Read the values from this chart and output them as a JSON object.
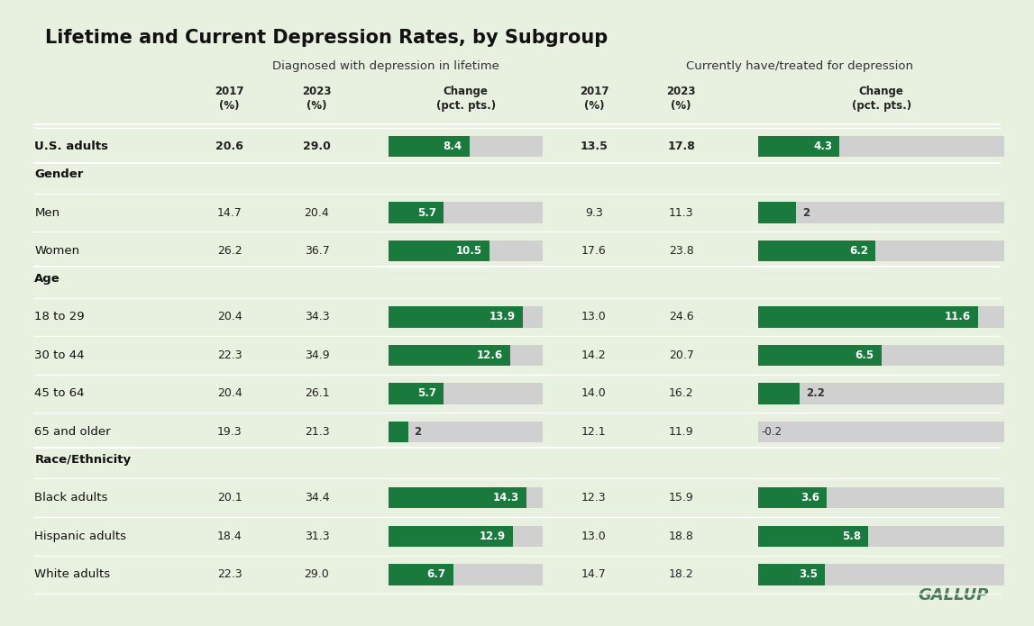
{
  "title": "Lifetime and Current Depression Rates, by Subgroup",
  "background_color": "#e8f0e0",
  "green_color": "#1a7a3e",
  "light_gray": "#d0d0d0",
  "rows": [
    {
      "label": "U.S. adults",
      "type": "data_bold",
      "life_2017": 20.6,
      "life_2023": 29.0,
      "life_change": 8.4,
      "curr_2017": 13.5,
      "curr_2023": 17.8,
      "curr_change": 4.3
    },
    {
      "label": "Gender",
      "type": "header"
    },
    {
      "label": "Men",
      "type": "data",
      "life_2017": 14.7,
      "life_2023": 20.4,
      "life_change": 5.7,
      "curr_2017": 9.3,
      "curr_2023": 11.3,
      "curr_change": 2.0
    },
    {
      "label": "Women",
      "type": "data",
      "life_2017": 26.2,
      "life_2023": 36.7,
      "life_change": 10.5,
      "curr_2017": 17.6,
      "curr_2023": 23.8,
      "curr_change": 6.2
    },
    {
      "label": "Age",
      "type": "header"
    },
    {
      "label": "18 to 29",
      "type": "data",
      "life_2017": 20.4,
      "life_2023": 34.3,
      "life_change": 13.9,
      "curr_2017": 13.0,
      "curr_2023": 24.6,
      "curr_change": 11.6
    },
    {
      "label": "30 to 44",
      "type": "data",
      "life_2017": 22.3,
      "life_2023": 34.9,
      "life_change": 12.6,
      "curr_2017": 14.2,
      "curr_2023": 20.7,
      "curr_change": 6.5
    },
    {
      "label": "45 to 64",
      "type": "data",
      "life_2017": 20.4,
      "life_2023": 26.1,
      "life_change": 5.7,
      "curr_2017": 14.0,
      "curr_2023": 16.2,
      "curr_change": 2.2
    },
    {
      "label": "65 and older",
      "type": "data",
      "life_2017": 19.3,
      "life_2023": 21.3,
      "life_change": 2.0,
      "curr_2017": 12.1,
      "curr_2023": 11.9,
      "curr_change": -0.2
    },
    {
      "label": "Race/Ethnicity",
      "type": "header"
    },
    {
      "label": "Black adults",
      "type": "data",
      "life_2017": 20.1,
      "life_2023": 34.4,
      "life_change": 14.3,
      "curr_2017": 12.3,
      "curr_2023": 15.9,
      "curr_change": 3.6
    },
    {
      "label": "Hispanic adults",
      "type": "data",
      "life_2017": 18.4,
      "life_2023": 31.3,
      "life_change": 12.9,
      "curr_2017": 13.0,
      "curr_2023": 18.8,
      "curr_change": 5.8
    },
    {
      "label": "White adults",
      "type": "data",
      "life_2017": 22.3,
      "life_2023": 29.0,
      "life_change": 6.7,
      "curr_2017": 14.7,
      "curr_2023": 18.2,
      "curr_change": 3.5
    }
  ],
  "col_headers_group1": "Diagnosed with depression in lifetime",
  "col_headers_group2": "Currently have/treated for depression",
  "col_sub1": "2017\n(%)",
  "col_sub2": "2023\n(%)",
  "col_sub3": "Change\n(pct. pts.)",
  "max_bar_lifetime": 16.0,
  "max_bar_current": 13.0
}
